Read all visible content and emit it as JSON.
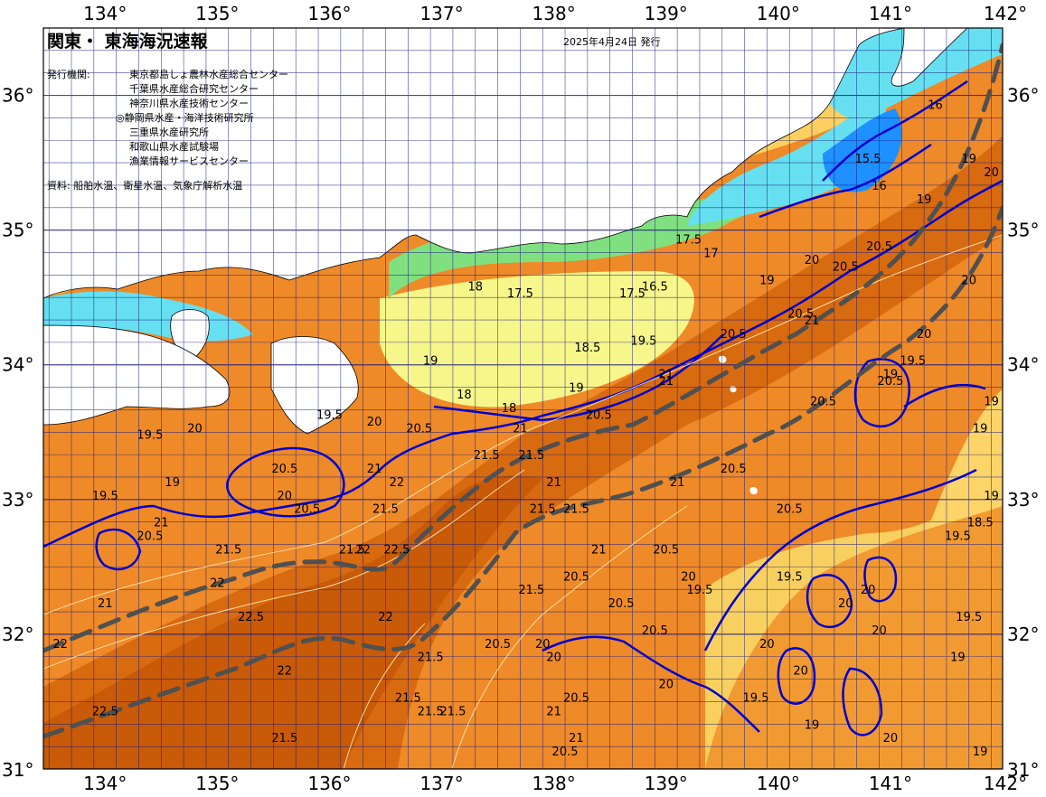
{
  "title": "関東・ 東海海況速報",
  "issue_date": "2025年4月24日 発行",
  "agencies_label": "発行機関:",
  "agencies": [
    "東京都島しょ農林水産総合センター",
    "千葉県水産総合研究センター",
    "神奈川県水産技術センター",
    "◎静岡県水産・海洋技術研究所",
    "三重県水産研究所",
    "和歌山県水産試験場",
    "漁業情報サービスセンター"
  ],
  "source": "資料: 船舶水温、衛星水温、気象庁解析水温",
  "axes": {
    "lon_labels": [
      "134°",
      "135°",
      "136°",
      "137°",
      "138°",
      "139°",
      "140°",
      "141°",
      "142°"
    ],
    "lat_labels": [
      "36°",
      "35°",
      "34°",
      "33°",
      "32°",
      "31°"
    ]
  },
  "colors": {
    "land": "#ffffff",
    "t16": "#1e90ff",
    "t17": "#66e0f0",
    "t175": "#80e080",
    "t18": "#f6f68a",
    "t185": "#f8e070",
    "t19": "#fcd060",
    "t195": "#f6b040",
    "t20": "#f29a32",
    "t205": "#ef8a28",
    "t21": "#e47a1c",
    "t215": "#d86a10",
    "t22": "#c85a08",
    "contour": "#0000cc",
    "current": "#505050",
    "grid": "#1a1a80"
  },
  "contour_labels": [
    {
      "text": "18",
      "lon": 137.3,
      "lat": 34.55
    },
    {
      "text": "17.5",
      "lon": 137.7,
      "lat": 34.5
    },
    {
      "text": "17.5",
      "lon": 138.7,
      "lat": 34.5
    },
    {
      "text": "16.5",
      "lon": 138.9,
      "lat": 34.55
    },
    {
      "text": "17.5",
      "lon": 139.2,
      "lat": 34.9
    },
    {
      "text": "17",
      "lon": 139.4,
      "lat": 34.8
    },
    {
      "text": "18.5",
      "lon": 138.3,
      "lat": 34.1
    },
    {
      "text": "18",
      "lon": 137.2,
      "lat": 33.75
    },
    {
      "text": "18",
      "lon": 137.6,
      "lat": 33.65
    },
    {
      "text": "19",
      "lon": 138.2,
      "lat": 33.8
    },
    {
      "text": "19",
      "lon": 136.9,
      "lat": 34.0
    },
    {
      "text": "19.5",
      "lon": 138.8,
      "lat": 34.15
    },
    {
      "text": "19",
      "lon": 139.9,
      "lat": 34.6
    },
    {
      "text": "20",
      "lon": 140.3,
      "lat": 34.75
    },
    {
      "text": "20.5",
      "lon": 140.6,
      "lat": 34.7
    },
    {
      "text": "20.5",
      "lon": 140.2,
      "lat": 34.35
    },
    {
      "text": "20.5",
      "lon": 139.6,
      "lat": 34.2
    },
    {
      "text": "20.5",
      "lon": 140.9,
      "lat": 34.85
    },
    {
      "text": "20.5",
      "lon": 138.4,
      "lat": 33.6
    },
    {
      "text": "21",
      "lon": 139.0,
      "lat": 33.9
    },
    {
      "text": "21",
      "lon": 137.7,
      "lat": 33.5
    },
    {
      "text": "21.5",
      "lon": 137.4,
      "lat": 33.3
    },
    {
      "text": "21.5",
      "lon": 137.8,
      "lat": 33.3
    },
    {
      "text": "21.5",
      "lon": 137.9,
      "lat": 32.9
    },
    {
      "text": "21",
      "lon": 136.4,
      "lat": 33.2
    },
    {
      "text": "22",
      "lon": 136.6,
      "lat": 33.1
    },
    {
      "text": "21.5",
      "lon": 136.5,
      "lat": 32.9
    },
    {
      "text": "22",
      "lon": 136.3,
      "lat": 32.6
    },
    {
      "text": "22.5",
      "lon": 136.6,
      "lat": 32.6
    },
    {
      "text": "21.5",
      "lon": 136.2,
      "lat": 32.6
    },
    {
      "text": "22",
      "lon": 136.5,
      "lat": 32.1
    },
    {
      "text": "22.5",
      "lon": 135.3,
      "lat": 32.1
    },
    {
      "text": "22",
      "lon": 135.0,
      "lat": 32.35
    },
    {
      "text": "21.5",
      "lon": 135.1,
      "lat": 32.6
    },
    {
      "text": "21",
      "lon": 134.5,
      "lat": 32.8
    },
    {
      "text": "20.5",
      "lon": 134.4,
      "lat": 32.7
    },
    {
      "text": "21",
      "lon": 134.0,
      "lat": 32.2
    },
    {
      "text": "19.5",
      "lon": 134.4,
      "lat": 33.45
    },
    {
      "text": "20",
      "lon": 134.8,
      "lat": 33.5
    },
    {
      "text": "20.5",
      "lon": 135.6,
      "lat": 33.2
    },
    {
      "text": "20",
      "lon": 135.6,
      "lat": 33.0
    },
    {
      "text": "20.5",
      "lon": 135.8,
      "lat": 32.9
    },
    {
      "text": "19.5",
      "lon": 136.0,
      "lat": 33.6
    },
    {
      "text": "20",
      "lon": 136.4,
      "lat": 33.55
    },
    {
      "text": "20.5",
      "lon": 136.8,
      "lat": 33.5
    },
    {
      "text": "21",
      "lon": 138.0,
      "lat": 33.1
    },
    {
      "text": "21.5",
      "lon": 138.2,
      "lat": 32.9
    },
    {
      "text": "21",
      "lon": 138.4,
      "lat": 32.6
    },
    {
      "text": "21.5",
      "lon": 137.8,
      "lat": 32.3
    },
    {
      "text": "20.5",
      "lon": 138.2,
      "lat": 32.4
    },
    {
      "text": "20.5",
      "lon": 138.6,
      "lat": 32.2
    },
    {
      "text": "20.5",
      "lon": 138.9,
      "lat": 32.0
    },
    {
      "text": "20.5",
      "lon": 139.0,
      "lat": 32.6
    },
    {
      "text": "20",
      "lon": 139.2,
      "lat": 32.4
    },
    {
      "text": "19.5",
      "lon": 139.3,
      "lat": 32.3
    },
    {
      "text": "21",
      "lon": 139.1,
      "lat": 33.1
    },
    {
      "text": "20.5",
      "lon": 139.6,
      "lat": 33.2
    },
    {
      "text": "20.5",
      "lon": 140.1,
      "lat": 32.9
    },
    {
      "text": "21",
      "lon": 140.3,
      "lat": 34.3
    },
    {
      "text": "20.5",
      "lon": 140.4,
      "lat": 33.7
    },
    {
      "text": "19.5",
      "lon": 141.2,
      "lat": 34.0
    },
    {
      "text": "20.5",
      "lon": 141.0,
      "lat": 33.85
    },
    {
      "text": "19",
      "lon": 141.0,
      "lat": 33.9
    },
    {
      "text": "19",
      "lon": 141.9,
      "lat": 33.7
    },
    {
      "text": "19",
      "lon": 141.8,
      "lat": 33.5
    },
    {
      "text": "19",
      "lon": 141.9,
      "lat": 33.0
    },
    {
      "text": "18.5",
      "lon": 141.8,
      "lat": 32.8
    },
    {
      "text": "19.5",
      "lon": 141.6,
      "lat": 32.7
    },
    {
      "text": "19.5",
      "lon": 140.1,
      "lat": 32.4
    },
    {
      "text": "19.5",
      "lon": 141.7,
      "lat": 32.1
    },
    {
      "text": "20",
      "lon": 140.8,
      "lat": 32.3
    },
    {
      "text": "20",
      "lon": 140.9,
      "lat": 32.0
    },
    {
      "text": "20",
      "lon": 140.6,
      "lat": 32.2
    },
    {
      "text": "19.5",
      "lon": 139.8,
      "lat": 31.5
    },
    {
      "text": "20",
      "lon": 139.9,
      "lat": 31.9
    },
    {
      "text": "20",
      "lon": 140.2,
      "lat": 31.7
    },
    {
      "text": "20",
      "lon": 141.0,
      "lat": 31.2
    },
    {
      "text": "19",
      "lon": 140.3,
      "lat": 31.3
    },
    {
      "text": "19",
      "lon": 141.6,
      "lat": 31.8
    },
    {
      "text": "19",
      "lon": 141.8,
      "lat": 31.1
    },
    {
      "text": "20",
      "lon": 139.0,
      "lat": 31.6
    },
    {
      "text": "20.5",
      "lon": 138.2,
      "lat": 31.5
    },
    {
      "text": "20",
      "lon": 137.9,
      "lat": 31.9
    },
    {
      "text": "21",
      "lon": 138.0,
      "lat": 31.4
    },
    {
      "text": "21",
      "lon": 138.2,
      "lat": 31.2
    },
    {
      "text": "20.5",
      "lon": 138.1,
      "lat": 31.1
    },
    {
      "text": "20.5",
      "lon": 137.5,
      "lat": 31.9
    },
    {
      "text": "21.5",
      "lon": 137.1,
      "lat": 31.4
    },
    {
      "text": "21.5",
      "lon": 136.9,
      "lat": 31.4
    },
    {
      "text": "21.5",
      "lon": 136.7,
      "lat": 31.5
    },
    {
      "text": "21.5",
      "lon": 136.9,
      "lat": 31.8
    },
    {
      "text": "22",
      "lon": 135.6,
      "lat": 31.7
    },
    {
      "text": "21.5",
      "lon": 135.6,
      "lat": 31.2
    },
    {
      "text": "22.5",
      "lon": 134.0,
      "lat": 31.4
    },
    {
      "text": "22",
      "lon": 133.6,
      "lat": 31.9
    },
    {
      "text": "19",
      "lon": 134.6,
      "lat": 33.1
    },
    {
      "text": "19.5",
      "lon": 134.0,
      "lat": 33.0
    },
    {
      "text": "16",
      "lon": 141.4,
      "lat": 35.9
    },
    {
      "text": "15.5",
      "lon": 140.8,
      "lat": 35.5
    },
    {
      "text": "16",
      "lon": 140.9,
      "lat": 35.3
    },
    {
      "text": "19",
      "lon": 141.3,
      "lat": 35.2
    },
    {
      "text": "19",
      "lon": 141.7,
      "lat": 35.5
    },
    {
      "text": "20",
      "lon": 141.9,
      "lat": 35.4
    },
    {
      "text": "20",
      "lon": 141.7,
      "lat": 34.6
    },
    {
      "text": "20",
      "lon": 141.3,
      "lat": 34.2
    },
    {
      "text": "21",
      "lon": 139.0,
      "lat": 33.85
    },
    {
      "text": "20",
      "lon": 138.0,
      "lat": 31.8
    }
  ]
}
